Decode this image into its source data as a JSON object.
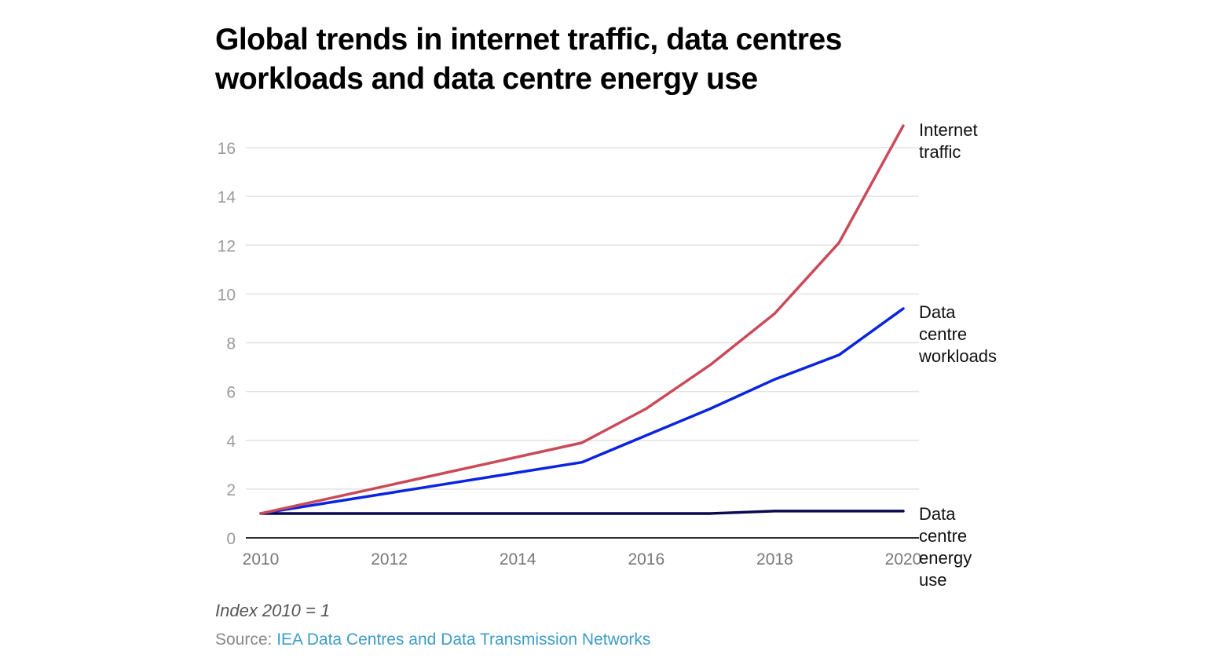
{
  "chart_data": {
    "type": "line",
    "title": "Global trends in internet traffic, data centres workloads and data centre energy use",
    "xlabel": "",
    "ylabel": "",
    "x": [
      2010,
      2011,
      2012,
      2013,
      2014,
      2015,
      2016,
      2017,
      2018,
      2019,
      2020
    ],
    "xlim": [
      2010,
      2020
    ],
    "ylim": [
      0,
      16
    ],
    "x_ticks": [
      2010,
      2012,
      2014,
      2016,
      2018,
      2020
    ],
    "y_ticks": [
      0,
      2,
      4,
      6,
      8,
      10,
      12,
      14,
      16
    ],
    "grid": true,
    "legend": "direct labels at line ends (right)",
    "series": [
      {
        "name": "Internet traffic",
        "label_lines": [
          "Internet",
          "traffic"
        ],
        "color": "#c94b5a",
        "values": [
          1,
          1.58,
          2.16,
          2.74,
          3.32,
          3.9,
          5.3,
          7.1,
          9.2,
          12.1,
          16.9
        ]
      },
      {
        "name": "Data centre workloads",
        "label_lines": [
          "Data",
          "centre",
          "workloads"
        ],
        "color": "#0a24e0",
        "values": [
          1,
          1.42,
          1.84,
          2.26,
          2.68,
          3.1,
          4.2,
          5.3,
          6.5,
          7.5,
          9.4
        ]
      },
      {
        "name": "Data centre energy use",
        "label_lines": [
          "Data",
          "centre",
          "energy",
          "use"
        ],
        "color": "#070a4f",
        "values": [
          1,
          1,
          1,
          1,
          1,
          1,
          1,
          1,
          1.1,
          1.1,
          1.1
        ]
      }
    ],
    "note": "Index 2010 = 1",
    "source_prefix": "Source: ",
    "source_text": "IEA Data Centres and Data Transmission Networks"
  }
}
